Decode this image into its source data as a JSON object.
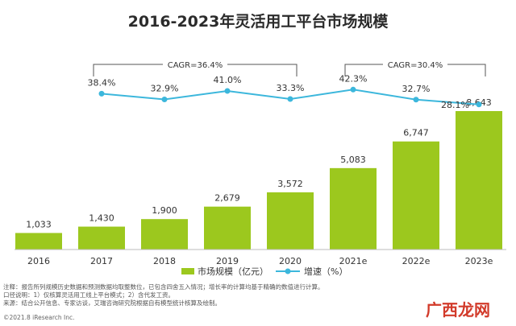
{
  "chart_data": {
    "type": "bar",
    "title": "2016-2023年灵活用工平台市场规模",
    "categories": [
      "2016",
      "2017",
      "2018",
      "2019",
      "2020",
      "2021e",
      "2022e",
      "2023e"
    ],
    "series": [
      {
        "name": "市场规模（亿元）",
        "type": "bar",
        "values": [
          1033,
          1430,
          1900,
          2679,
          3572,
          5083,
          6747,
          8643
        ],
        "labels": [
          "1,033",
          "1,430",
          "1,900",
          "2,679",
          "3,572",
          "5,083",
          "6,747",
          "8,643"
        ]
      },
      {
        "name": "增速（%）",
        "type": "line",
        "values": [
          null,
          38.4,
          32.9,
          41.0,
          33.3,
          42.3,
          32.7,
          28.1
        ],
        "labels": [
          "",
          "38.4%",
          "32.9%",
          "41.0%",
          "33.3%",
          "42.3%",
          "32.7%",
          "28.1%"
        ]
      }
    ],
    "annotations": [
      {
        "text": "CAGR=36.4%",
        "from": "2017",
        "to": "2020"
      },
      {
        "text": "CAGR=30.4%",
        "from": "2021e",
        "to": "2023e"
      }
    ],
    "grid": false,
    "legend": "bottom"
  },
  "colors": {
    "bar": "#9cc81e",
    "line": "#3cb7dc",
    "axis": "#bbbbbb",
    "watermark": "#d23a2a"
  },
  "notes": [
    "注释：报告所列规模历史数据和预测数据均取整数位，已包含四舍五入情况；增长率的计算均基于精确的数值进行计算。",
    "口径说明：1）仅核算灵活用工线上平台模式；2）含代发工资。",
    "来源：结合公开信息、专家访谈，艾瑞咨询研究院根据自有模型统计核算及绘制。"
  ],
  "copyright": "©2021.8 iResearch Inc.",
  "watermark": {
    "text": "广西龙网"
  }
}
